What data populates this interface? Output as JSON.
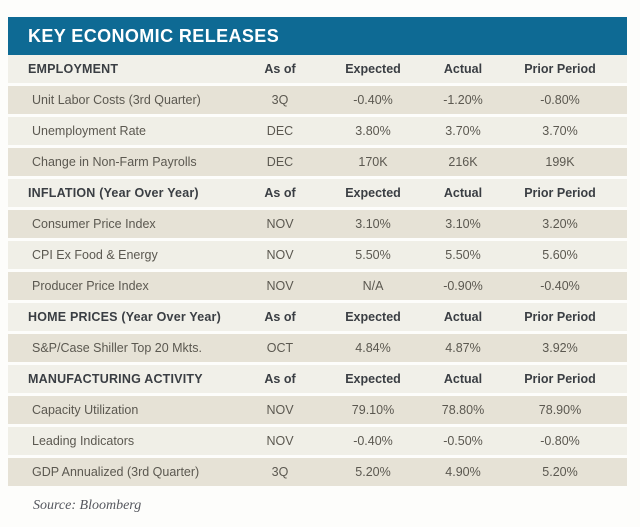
{
  "page": {
    "source_note": "Source: Bloomberg"
  },
  "colors": {
    "title_bar_bg": "#0E6A94",
    "title_text": "#FFFFFF",
    "section_row_bg": "#F1F0E9",
    "row_light_bg": "#F0EFE7",
    "row_dark_bg": "#E6E2D6",
    "header_text": "#3A3E43",
    "data_text": "#5B5850",
    "source_text": "#55575E"
  },
  "chart_data": {
    "type": "table",
    "title": "KEY ECONOMIC RELEASES",
    "column_headers": {
      "asof": "As of",
      "expected": "Expected",
      "actual": "Actual",
      "prior": "Prior Period"
    },
    "sections": [
      {
        "label": "EMPLOYMENT",
        "rows": [
          {
            "label": "Unit Labor Costs (3rd Quarter)",
            "asof": "3Q",
            "expected": "-0.40%",
            "actual": "-1.20%",
            "prior": "-0.80%"
          },
          {
            "label": "Unemployment Rate",
            "asof": "DEC",
            "expected": "3.80%",
            "actual": "3.70%",
            "prior": "3.70%"
          },
          {
            "label": "Change in Non-Farm Payrolls",
            "asof": "DEC",
            "expected": "170K",
            "actual": "216K",
            "prior": "199K"
          }
        ]
      },
      {
        "label": "INFLATION (Year Over Year)",
        "rows": [
          {
            "label": "Consumer Price Index",
            "asof": "NOV",
            "expected": "3.10%",
            "actual": "3.10%",
            "prior": "3.20%"
          },
          {
            "label": "CPI Ex Food & Energy",
            "asof": "NOV",
            "expected": "5.50%",
            "actual": "5.50%",
            "prior": "5.60%"
          },
          {
            "label": "Producer Price Index",
            "asof": "NOV",
            "expected": "N/A",
            "actual": "-0.90%",
            "prior": "-0.40%"
          }
        ]
      },
      {
        "label": "HOME PRICES (Year Over Year)",
        "rows": [
          {
            "label": "S&P/Case Shiller Top 20 Mkts.",
            "asof": "OCT",
            "expected": "4.84%",
            "actual": "4.87%",
            "prior": "3.92%"
          }
        ]
      },
      {
        "label": "MANUFACTURING ACTIVITY",
        "rows": [
          {
            "label": "Capacity Utilization",
            "asof": "NOV",
            "expected": "79.10%",
            "actual": "78.80%",
            "prior": "78.90%"
          },
          {
            "label": "Leading Indicators",
            "asof": "NOV",
            "expected": "-0.40%",
            "actual": "-0.50%",
            "prior": "-0.80%"
          },
          {
            "label": "GDP Annualized (3rd Quarter)",
            "asof": "3Q",
            "expected": "5.20%",
            "actual": "4.90%",
            "prior": "5.20%"
          }
        ]
      }
    ]
  }
}
